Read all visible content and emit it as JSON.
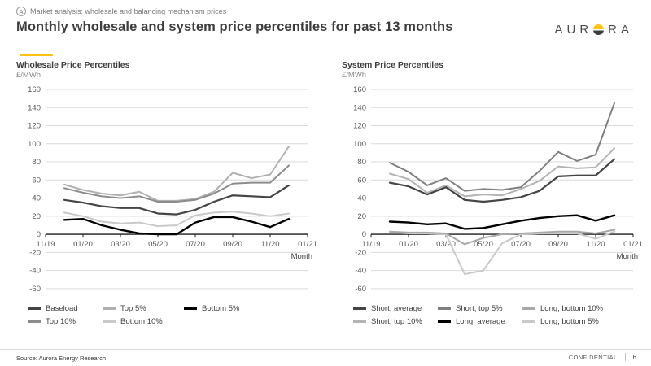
{
  "header": {
    "badge": "A",
    "eyebrow": "Market analysis: wholesale and balancing mechanism prices",
    "title": "Monthly wholesale and system price percentiles for past 13 months",
    "logo_pre": "AUR",
    "logo_post": "RA"
  },
  "colors": {
    "accent": "#FFC20E",
    "grid": "#d9d9d9",
    "axis": "#1a1a1a",
    "axis_text": "#595959"
  },
  "chart_data": [
    {
      "type": "line",
      "title": "Wholesale Price Percentiles",
      "ylabel": "£/MWh",
      "xlabel": "Month",
      "ylim": [
        -60,
        160
      ],
      "ytick_step": 20,
      "grid": true,
      "legend_position": "bottom",
      "x_months": [
        "12/19",
        "01/20",
        "02/20",
        "03/20",
        "04/20",
        "05/20",
        "06/20",
        "07/20",
        "08/20",
        "09/20",
        "10/20",
        "11/20",
        "12/20"
      ],
      "xtick_labels": [
        "11/19",
        "01/20",
        "03/20",
        "05/20",
        "07/20",
        "09/20",
        "11/20",
        "01/21"
      ],
      "xtick_month_offsets": [
        -1,
        1,
        3,
        5,
        7,
        9,
        11,
        13
      ],
      "series": [
        {
          "name": "Bottom 10%",
          "color": "#c9c9c9",
          "width": 2,
          "values": [
            24,
            20,
            14,
            12,
            13,
            9,
            10,
            21,
            24,
            25,
            23,
            20,
            23
          ]
        },
        {
          "name": "Top 5%",
          "color": "#b0b0b0",
          "width": 2,
          "values": [
            55,
            49,
            45,
            43,
            47,
            37,
            37,
            39,
            47,
            68,
            62,
            66,
            97
          ]
        },
        {
          "name": "Top 10%",
          "color": "#8c8c8c",
          "width": 2,
          "values": [
            51,
            46,
            42,
            40,
            42,
            36,
            36,
            38,
            45,
            56,
            57,
            57,
            76
          ]
        },
        {
          "name": "Baseload",
          "color": "#454545",
          "width": 2.2,
          "values": [
            38,
            35,
            31,
            29,
            29,
            23,
            22,
            27,
            36,
            43,
            42,
            41,
            54
          ]
        },
        {
          "name": "Bottom 5%",
          "color": "#000000",
          "width": 2.4,
          "values": [
            16,
            17,
            10,
            5,
            1,
            0,
            0,
            13,
            19,
            19,
            14,
            8,
            17
          ]
        }
      ],
      "legend_order": [
        "Baseload",
        "Top 5%",
        "Bottom 5%",
        "Top 10%",
        "Bottom 10%"
      ]
    },
    {
      "type": "line",
      "title": "System Price Percentiles",
      "ylabel": "£/MWh",
      "xlabel": "Month",
      "ylim": [
        -60,
        160
      ],
      "ytick_step": 20,
      "grid": true,
      "legend_position": "bottom",
      "x_months": [
        "12/19",
        "01/20",
        "02/20",
        "03/20",
        "04/20",
        "05/20",
        "06/20",
        "07/20",
        "08/20",
        "09/20",
        "10/20",
        "11/20",
        "12/20"
      ],
      "xtick_labels": [
        "11/19",
        "01/20",
        "03/20",
        "05/20",
        "07/20",
        "09/20",
        "11/20",
        "01/21"
      ],
      "xtick_month_offsets": [
        -1,
        1,
        3,
        5,
        7,
        9,
        11,
        13
      ],
      "series": [
        {
          "name": "Long, bottom 5%",
          "color": "#c9c9c9",
          "width": 2,
          "values": [
            2,
            1,
            1,
            0,
            -44,
            -40,
            -10,
            0,
            1,
            1,
            1,
            -5,
            3
          ]
        },
        {
          "name": "Long, bottom 10%",
          "color": "#a8a8a8",
          "width": 2,
          "values": [
            3,
            2,
            2,
            1,
            -11,
            -4,
            0,
            1,
            2,
            3,
            3,
            1,
            5
          ]
        },
        {
          "name": "Short, top 10%",
          "color": "#b3b3b3",
          "width": 2,
          "values": [
            67,
            61,
            46,
            54,
            42,
            44,
            43,
            50,
            59,
            75,
            73,
            74,
            95
          ]
        },
        {
          "name": "Short, top 5%",
          "color": "#7f7f7f",
          "width": 2,
          "values": [
            79,
            69,
            54,
            62,
            48,
            50,
            49,
            52,
            70,
            91,
            81,
            88,
            145
          ]
        },
        {
          "name": "Short, average",
          "color": "#454545",
          "width": 2.2,
          "values": [
            57,
            53,
            44,
            52,
            38,
            36,
            38,
            41,
            48,
            64,
            65,
            65,
            83
          ]
        },
        {
          "name": "Long, average",
          "color": "#000000",
          "width": 2.4,
          "values": [
            14,
            13,
            11,
            12,
            6,
            7,
            11,
            15,
            18,
            20,
            21,
            15,
            21
          ]
        }
      ],
      "legend_order": [
        "Short, average",
        "Short, top 5%",
        "Long, bottom 10%",
        "Short, top 10%",
        "Long, average",
        "Long, bottom 5%"
      ]
    }
  ],
  "footer": {
    "source": "Source: Aurora Energy Research",
    "confidential": "CONFIDENTIAL",
    "page": "6"
  }
}
